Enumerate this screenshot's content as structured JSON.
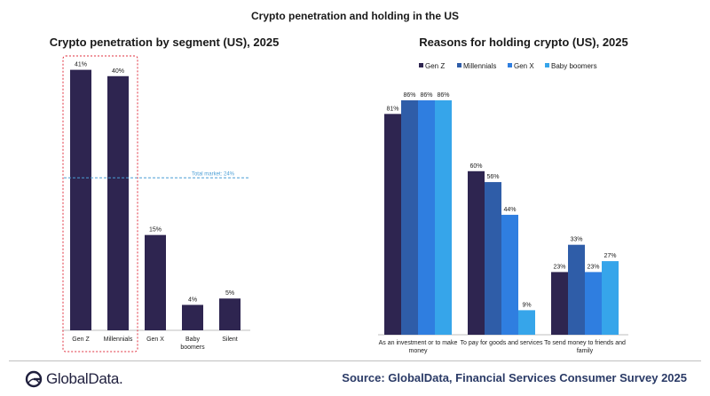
{
  "title": "Crypto penetration and holding in the US",
  "colors": {
    "navy": "#2e2550",
    "steel": "#2f5da8",
    "mid": "#2f7ee0",
    "light": "#36a5ea",
    "highlight_box": "#e0303f",
    "reference_line": "#4a9ed6"
  },
  "chart_data": [
    {
      "type": "bar",
      "title": "Crypto penetration by segment (US), 2025",
      "categories": [
        "Gen Z",
        "Millennials",
        "Gen X",
        "Baby boomers",
        "Silent"
      ],
      "values": [
        41,
        40,
        15,
        4,
        5
      ],
      "data_labels": [
        "41%",
        "40%",
        "15%",
        "4%",
        "5%"
      ],
      "unit": "%",
      "ylim": [
        0,
        45
      ],
      "reference_line": {
        "value": 24,
        "label": "Total market: 24%"
      },
      "highlight": [
        "Gen Z",
        "Millennials"
      ]
    },
    {
      "type": "bar",
      "title": "Reasons for holding crypto (US), 2025",
      "categories": [
        "As an investment or to make money",
        "To pay for goods and services",
        "To send money to friends and family"
      ],
      "category_lines": [
        [
          "As an investment or to make",
          "money"
        ],
        [
          "To pay for goods and services"
        ],
        [
          "To send money to friends and",
          "family"
        ]
      ],
      "series": [
        {
          "name": "Gen Z",
          "values": [
            81,
            60,
            23
          ]
        },
        {
          "name": "Millennials",
          "values": [
            86,
            56,
            33
          ]
        },
        {
          "name": "Gen X",
          "values": [
            86,
            44,
            23
          ]
        },
        {
          "name": "Baby boomers",
          "values": [
            86,
            9,
            27
          ]
        }
      ],
      "unit": "%",
      "ylim": [
        0,
        100
      ],
      "legend": "top"
    }
  ],
  "footer": {
    "logo_text": "GlobalData.",
    "source": "Source: GlobalData, Financial Services Consumer Survey 2025"
  }
}
